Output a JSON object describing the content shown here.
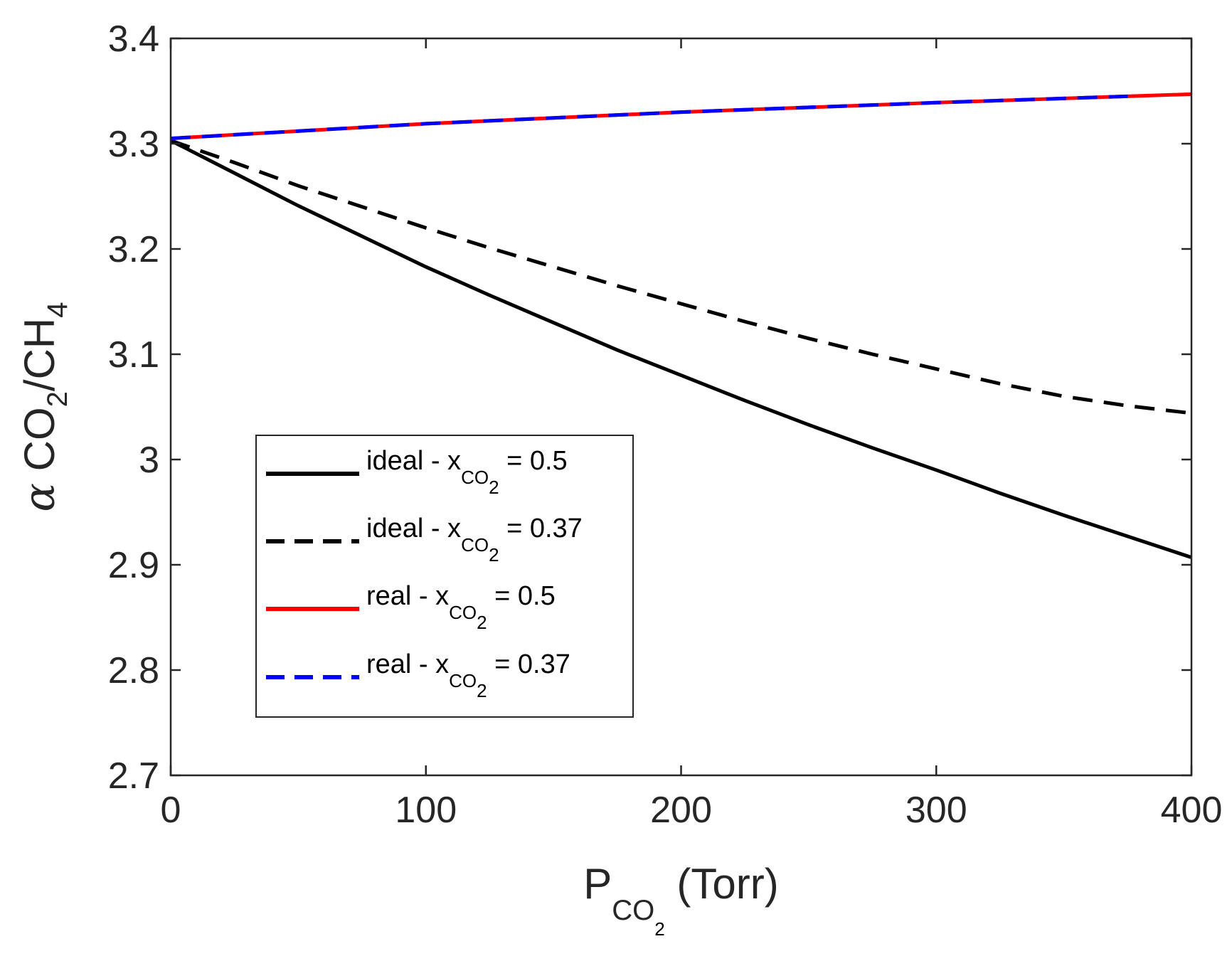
{
  "chart_data": {
    "type": "line",
    "xlim": [
      0,
      400
    ],
    "ylim": [
      2.7,
      3.4
    ],
    "xticks": [
      0,
      100,
      200,
      300,
      400
    ],
    "yticks": [
      2.7,
      2.8,
      2.9,
      3.0,
      3.1,
      3.2,
      3.3,
      3.4
    ],
    "xtick_labels": [
      "0",
      "100",
      "200",
      "300",
      "400"
    ],
    "ytick_labels": [
      "2.7",
      "2.8",
      "2.9",
      "3",
      "3.1",
      "3.2",
      "3.3",
      "3.4"
    ],
    "xlabel": {
      "main": "P",
      "sub1": "CO",
      "sub2": "2",
      "suffix": " (Torr)"
    },
    "ylabel": {
      "alpha": "α",
      "pre": " CO",
      "sub1": "2",
      "mid": "/CH",
      "sub2": "4"
    },
    "grid": false,
    "legend_position": "center-left",
    "series": [
      {
        "name": "ideal - x_CO2 = 0.5",
        "legend": {
          "pre": "ideal - x",
          "sub1": "CO",
          "sub2": "2",
          "post": " = 0.5"
        },
        "color": "#000000",
        "dash": "solid",
        "x": [
          0,
          25,
          50,
          75,
          100,
          125,
          150,
          175,
          200,
          225,
          250,
          275,
          300,
          325,
          350,
          375,
          400
        ],
        "y": [
          3.303,
          3.272,
          3.241,
          3.212,
          3.183,
          3.156,
          3.13,
          3.104,
          3.08,
          3.056,
          3.033,
          3.011,
          2.99,
          2.968,
          2.947,
          2.927,
          2.907
        ]
      },
      {
        "name": "ideal - x_CO2 = 0.37",
        "legend": {
          "pre": "ideal - x",
          "sub1": "CO",
          "sub2": "2",
          "post": " = 0.37"
        },
        "color": "#000000",
        "dash": "dashed",
        "x": [
          0,
          25,
          50,
          75,
          100,
          125,
          150,
          175,
          200,
          225,
          250,
          275,
          300,
          325,
          350,
          375,
          400
        ],
        "y": [
          3.303,
          3.282,
          3.26,
          3.24,
          3.22,
          3.201,
          3.183,
          3.165,
          3.148,
          3.131,
          3.115,
          3.1,
          3.086,
          3.072,
          3.06,
          3.051,
          3.044
        ]
      },
      {
        "name": "real - x_CO2 = 0.5",
        "legend": {
          "pre": "real - x",
          "sub1": "CO",
          "sub2": "2",
          "post": " = 0.5"
        },
        "color": "#ff0000",
        "dash": "solid",
        "x": [
          0,
          100,
          200,
          300,
          400
        ],
        "y": [
          3.305,
          3.319,
          3.33,
          3.339,
          3.347
        ]
      },
      {
        "name": "real - x_CO2 = 0.37",
        "legend": {
          "pre": "real - x",
          "sub1": "CO",
          "sub2": "2",
          "post": " = 0.37"
        },
        "color": "#0000ff",
        "dash": "dashed",
        "x": [
          0,
          100,
          200,
          300,
          375
        ],
        "y": [
          3.305,
          3.319,
          3.33,
          3.339,
          3.345
        ]
      }
    ]
  }
}
